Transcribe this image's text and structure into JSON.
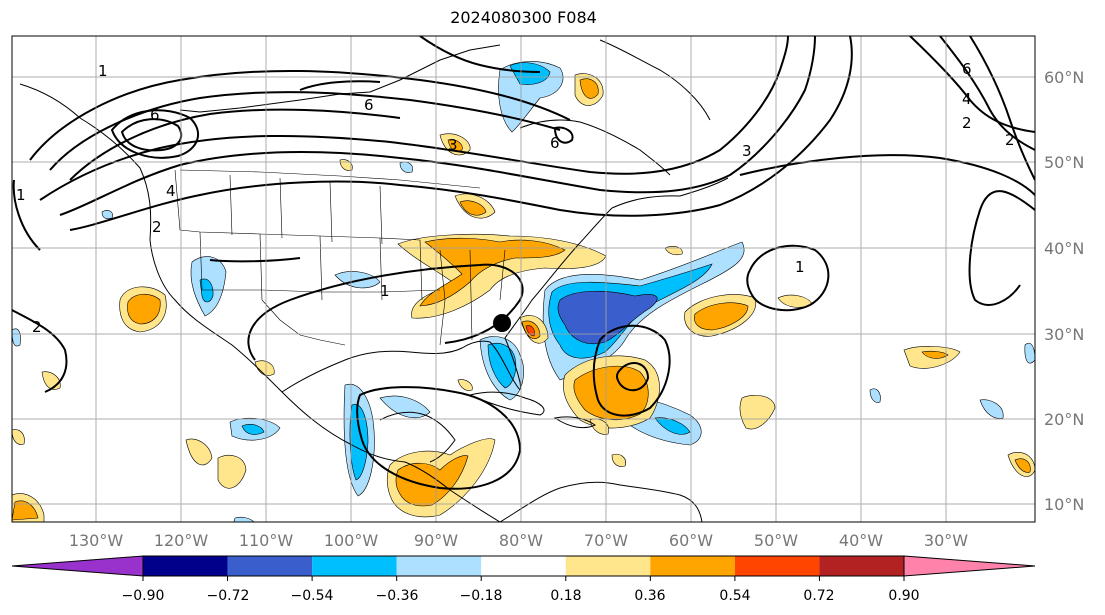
{
  "title": "2024080300 F084",
  "map": {
    "lon_labels": [
      "130°W",
      "120°W",
      "110°W",
      "100°W",
      "90°W",
      "80°W",
      "70°W",
      "60°W",
      "50°W",
      "40°W",
      "30°W"
    ],
    "lat_labels": [
      "60°N",
      "50°N",
      "40°N",
      "30°N",
      "20°N",
      "10°N"
    ],
    "marker": "storm-center-dot",
    "contour_labels": [
      "1",
      "6",
      "6",
      "4",
      "2",
      "6",
      "1",
      "2",
      "6",
      "4",
      "2",
      "1",
      "1",
      "2",
      "3",
      "3"
    ]
  },
  "colorbar": {
    "ticks": [
      "−0.90",
      "−0.72",
      "−0.54",
      "−0.36",
      "−0.18",
      "0.18",
      "0.36",
      "0.54",
      "0.72",
      "0.90"
    ],
    "colors": [
      "#9932CC",
      "#00008B",
      "#3A5FCD",
      "#00BFFF",
      "#ADDFFF",
      "#FFFFFF",
      "#FFE68C",
      "#FFA500",
      "#FF4500",
      "#B22222",
      "#FF82AB"
    ]
  }
}
